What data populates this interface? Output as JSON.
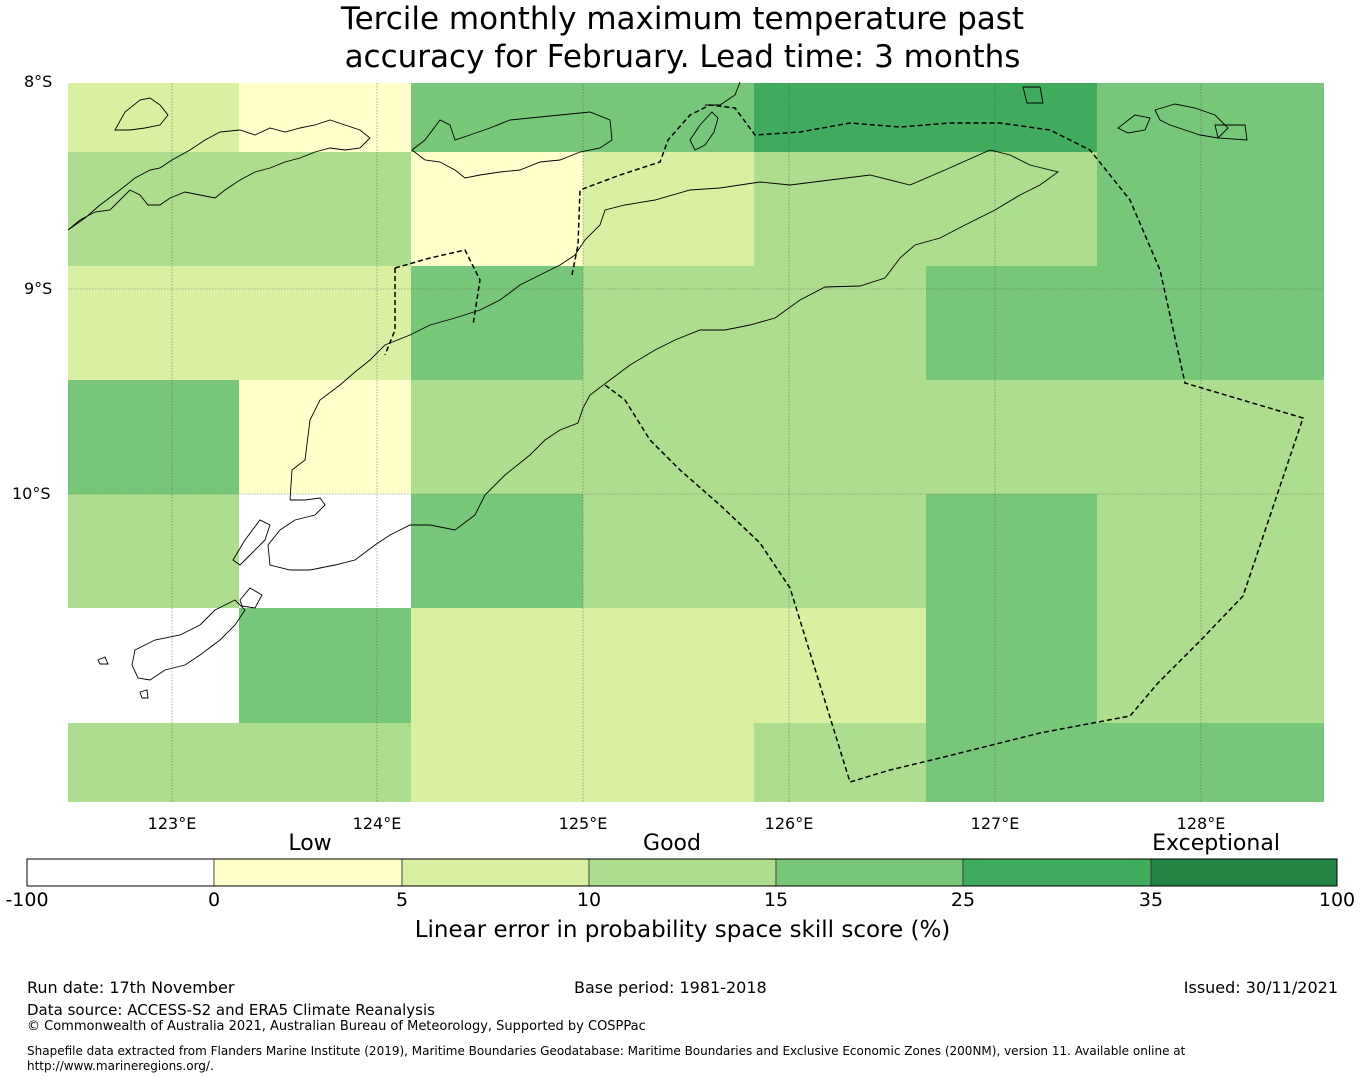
{
  "title_line1": "Tercile monthly maximum temperature past",
  "title_line2": "accuracy for February. Lead time: 3 months",
  "lat_labels": [
    "8°S",
    "9°S",
    "10°S"
  ],
  "lon_labels": [
    "123°E",
    "124°E",
    "125°E",
    "126°E",
    "127°E",
    "128°E"
  ],
  "colorbar": {
    "categories": [
      "Low",
      "Good",
      "Exceptional"
    ],
    "ticks": [
      "-100",
      "0",
      "5",
      "10",
      "15",
      "25",
      "35",
      "100"
    ],
    "colors": [
      "#ffffff",
      "#ffffcc",
      "#d9f0a3",
      "#addd8e",
      "#78c679",
      "#41ab5d",
      "#238443"
    ],
    "label": "Linear error in probability space skill score (%)"
  },
  "skill_grid": [
    [
      "d9f0a3",
      "ffffcc",
      "78c679",
      "78c679",
      "41ab5d",
      "41ab5d",
      "78c679"
    ],
    [
      "addd8e",
      "addd8e",
      "ffffcc",
      "d9f0a3",
      "addd8e",
      "addd8e",
      "78c679"
    ],
    [
      "d9f0a3",
      "d9f0a3",
      "78c679",
      "addd8e",
      "addd8e",
      "78c679",
      "78c679"
    ],
    [
      "78c679",
      "ffffcc",
      "addd8e",
      "addd8e",
      "addd8e",
      "addd8e",
      "addd8e"
    ],
    [
      "addd8e",
      "ffffff",
      "78c679",
      "addd8e",
      "addd8e",
      "78c679",
      "addd8e"
    ],
    [
      "ffffff",
      "78c679",
      "d9f0a3",
      "d9f0a3",
      "d9f0a3",
      "78c679",
      "addd8e"
    ],
    [
      "addd8e",
      "addd8e",
      "d9f0a3",
      "d9f0a3",
      "addd8e",
      "78c679",
      "78c679"
    ]
  ],
  "footer": {
    "run_date": "Run date: 17th November",
    "base_period": "Base period: 1981-2018",
    "issued": "Issued: 30/11/2021",
    "data_source": "Data source: ACCESS-S2 and ERA5 Climate Reanalysis",
    "copyright": "© Commonwealth of Australia 2021, Australian Bureau of Meteorology, Supported by COSPPac",
    "shapefile_line1": "Shapefile data extracted from Flanders Marine Institute (2019), Maritime Boundaries Geodatabase: Maritime Boundaries and Exclusive Economic Zones (200NM), version 11. Available online at",
    "shapefile_line2": "http://www.marineregions.org/."
  }
}
